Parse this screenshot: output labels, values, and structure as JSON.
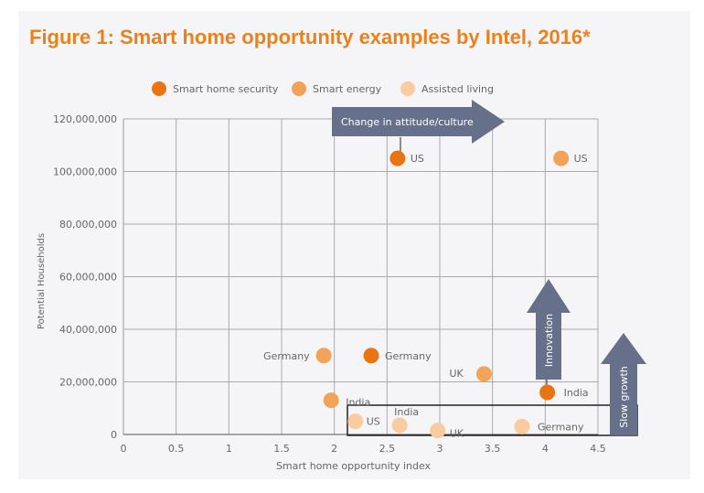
{
  "chart_data": {
    "type": "scatter",
    "title": "Figure 1: Smart home opportunity examples by Intel, 2016*",
    "xlabel": "Smart home opportunity index",
    "ylabel": "Potential Households",
    "xlim": [
      0,
      4.5
    ],
    "ylim": [
      0,
      120000000
    ],
    "xticks": [
      "0",
      "0.5",
      "1",
      "1.5",
      "2",
      "2.5",
      "3",
      "3.5",
      "4",
      "4.5"
    ],
    "yticks": [
      "0",
      "20,000,000",
      "40,000,000",
      "60,000,000",
      "80,000,000",
      "100,000,000",
      "120,000,000"
    ],
    "grid": true,
    "legend_position": "top",
    "series": [
      {
        "name": "Smart home security",
        "color": "#e87511",
        "points": [
          {
            "label": "US",
            "x": 2.6,
            "y": 105000000
          },
          {
            "label": "Germany",
            "x": 2.35,
            "y": 30000000
          },
          {
            "label": "India",
            "x": 4.02,
            "y": 16000000
          }
        ]
      },
      {
        "name": "Smart energy",
        "color": "#f2a358",
        "points": [
          {
            "label": "US",
            "x": 4.15,
            "y": 105000000
          },
          {
            "label": "Germany",
            "x": 1.9,
            "y": 30000000
          },
          {
            "label": "UK",
            "x": 3.42,
            "y": 23000000
          },
          {
            "label": "India",
            "x": 1.97,
            "y": 13000000
          }
        ]
      },
      {
        "name": "Assisted living",
        "color": "#f8cba0",
        "points": [
          {
            "label": "US",
            "x": 2.2,
            "y": 5000000
          },
          {
            "label": "India",
            "x": 2.62,
            "y": 3500000
          },
          {
            "label": "UK",
            "x": 2.98,
            "y": 1500000
          },
          {
            "label": "Germany",
            "x": 3.78,
            "y": 3000000
          }
        ]
      }
    ],
    "annotations": [
      "Change in attitude/culture",
      "Innovation",
      "Slow growth"
    ]
  },
  "arrow_color": "#67708a"
}
